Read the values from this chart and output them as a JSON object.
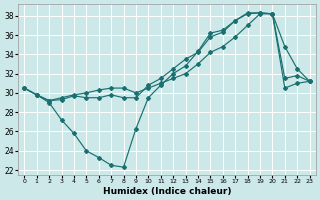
{
  "bg_color": "#cce8e8",
  "grid_color": "#ffffff",
  "line_color": "#1a7070",
  "xlabel": "Humidex (Indice chaleur)",
  "xlim": [
    -0.5,
    23.5
  ],
  "ylim": [
    21.5,
    39.2
  ],
  "yticks": [
    22,
    24,
    26,
    28,
    30,
    32,
    34,
    36,
    38
  ],
  "xticks": [
    0,
    1,
    2,
    3,
    4,
    5,
    6,
    7,
    8,
    9,
    10,
    11,
    12,
    13,
    14,
    15,
    16,
    17,
    18,
    19,
    20,
    21,
    22,
    23
  ],
  "line1_x": [
    0,
    1,
    2,
    3,
    4,
    5,
    6,
    7,
    8,
    9,
    10,
    11,
    12,
    13,
    14,
    15,
    16,
    17,
    18,
    19,
    20,
    21,
    22,
    23
  ],
  "line1_y": [
    30.5,
    29.8,
    29.0,
    27.2,
    25.8,
    24.0,
    23.3,
    22.5,
    22.3,
    26.3,
    29.5,
    30.8,
    32.0,
    32.8,
    34.3,
    36.2,
    36.5,
    37.5,
    38.2,
    38.3,
    38.2,
    34.8,
    32.5,
    31.2
  ],
  "line2_x": [
    0,
    1,
    2,
    3,
    4,
    5,
    6,
    7,
    8,
    9,
    10,
    11,
    12,
    13,
    14,
    15,
    16,
    17,
    18,
    19,
    20,
    21,
    22,
    23
  ],
  "line2_y": [
    30.5,
    29.8,
    29.2,
    29.3,
    29.7,
    29.5,
    29.5,
    29.8,
    29.5,
    29.5,
    30.8,
    31.5,
    32.5,
    33.5,
    34.2,
    35.8,
    36.3,
    37.5,
    38.3,
    38.3,
    38.2,
    31.5,
    31.8,
    31.2
  ],
  "line3_x": [
    0,
    1,
    2,
    3,
    4,
    5,
    6,
    7,
    8,
    9,
    10,
    11,
    12,
    13,
    14,
    15,
    16,
    17,
    18,
    19,
    20,
    21,
    22,
    23
  ],
  "line3_y": [
    30.5,
    29.8,
    29.2,
    29.5,
    29.8,
    30.0,
    30.3,
    30.5,
    30.5,
    30.0,
    30.5,
    31.0,
    31.5,
    32.0,
    33.0,
    34.2,
    34.8,
    35.8,
    37.0,
    38.2,
    38.2,
    30.5,
    31.0,
    31.2
  ]
}
